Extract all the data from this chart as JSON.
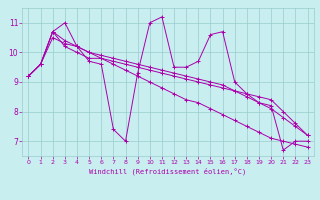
{
  "xlabel": "Windchill (Refroidissement éolien,°C)",
  "bg_color": "#c8eef0",
  "line_color": "#aa00aa",
  "grid_color": "#99cccc",
  "xlim": [
    -0.5,
    23.5
  ],
  "ylim": [
    6.5,
    11.5
  ],
  "yticks": [
    7,
    8,
    9,
    10,
    11
  ],
  "xticks": [
    0,
    1,
    2,
    3,
    4,
    5,
    6,
    7,
    8,
    9,
    10,
    11,
    12,
    13,
    14,
    15,
    16,
    17,
    18,
    19,
    20,
    21,
    22,
    23
  ],
  "series": [
    [
      9.2,
      9.6,
      10.7,
      11.0,
      10.2,
      9.7,
      9.6,
      7.4,
      7.0,
      9.3,
      11.0,
      11.2,
      9.5,
      9.5,
      9.7,
      10.6,
      10.7,
      9.0,
      8.6,
      8.3,
      8.2,
      6.7,
      7.0,
      7.0
    ],
    [
      9.2,
      9.6,
      10.7,
      10.2,
      10.0,
      9.8,
      9.8,
      9.7,
      9.6,
      9.5,
      9.4,
      9.3,
      9.2,
      9.1,
      9.0,
      8.9,
      8.8,
      8.7,
      8.6,
      8.5,
      8.4,
      8.0,
      7.6,
      7.2
    ],
    [
      9.2,
      9.6,
      10.5,
      10.3,
      10.2,
      10.0,
      9.9,
      9.8,
      9.7,
      9.6,
      9.5,
      9.4,
      9.3,
      9.2,
      9.1,
      9.0,
      8.9,
      8.7,
      8.5,
      8.3,
      8.1,
      7.8,
      7.5,
      7.2
    ],
    [
      9.2,
      9.6,
      10.7,
      10.4,
      10.2,
      10.0,
      9.8,
      9.6,
      9.4,
      9.2,
      9.0,
      8.8,
      8.6,
      8.4,
      8.3,
      8.1,
      7.9,
      7.7,
      7.5,
      7.3,
      7.1,
      7.0,
      6.9,
      6.8
    ]
  ],
  "figsize": [
    3.2,
    2.0
  ],
  "dpi": 100
}
